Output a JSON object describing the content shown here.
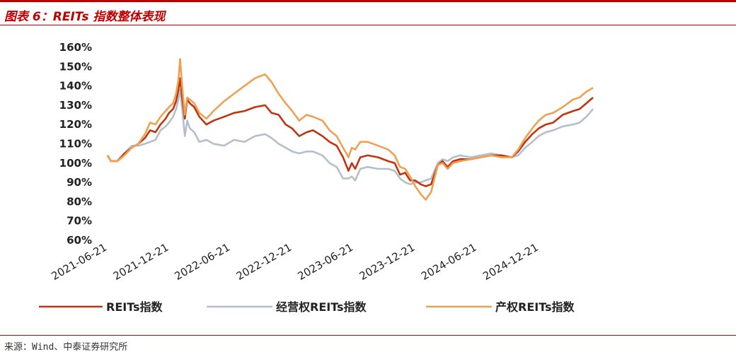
{
  "header": {
    "title": "图表 6：REITs 指数整体表现"
  },
  "footer": {
    "source": "来源：Wind、中泰证券研究所"
  },
  "colors": {
    "accent": "#c00000"
  },
  "chart_data": {
    "type": "line",
    "title": "图表 6：REITs 指数整体表现",
    "y_unit": "%",
    "ylim": [
      60,
      160
    ],
    "y_ticks": [
      "60%",
      "70%",
      "80%",
      "90%",
      "100%",
      "110%",
      "120%",
      "130%",
      "140%",
      "150%",
      "160%"
    ],
    "x_ticks": [
      "2021-06-21",
      "2021-12-21",
      "2022-06-21",
      "2022-12-21",
      "2023-06-21",
      "2023-12-21",
      "2024-06-21",
      "2024-12-21"
    ],
    "xlim": [
      "2021-06-21",
      "2025-05-30"
    ],
    "grid": false,
    "legend_position": "bottom",
    "series": [
      {
        "name": "REITs指数",
        "color": "#c0340f",
        "points": [
          [
            "2021-06-21",
            104
          ],
          [
            "2021-07-01",
            101
          ],
          [
            "2021-07-20",
            101
          ],
          [
            "2021-08-10",
            105
          ],
          [
            "2021-09-01",
            108
          ],
          [
            "2021-09-20",
            110
          ],
          [
            "2021-10-10",
            113
          ],
          [
            "2021-10-25",
            117
          ],
          [
            "2021-11-10",
            116
          ],
          [
            "2021-11-25",
            120
          ],
          [
            "2021-12-10",
            123
          ],
          [
            "2021-12-20",
            126
          ],
          [
            "2022-01-01",
            128
          ],
          [
            "2022-01-10",
            132
          ],
          [
            "2022-01-17",
            138
          ],
          [
            "2022-01-22",
            144
          ],
          [
            "2022-01-28",
            134
          ],
          [
            "2022-02-05",
            123
          ],
          [
            "2022-02-12",
            133
          ],
          [
            "2022-02-20",
            131
          ],
          [
            "2022-03-05",
            129
          ],
          [
            "2022-03-20",
            124
          ],
          [
            "2022-04-10",
            120
          ],
          [
            "2022-05-01",
            122
          ],
          [
            "2022-06-01",
            124
          ],
          [
            "2022-07-01",
            126
          ],
          [
            "2022-08-01",
            127
          ],
          [
            "2022-09-01",
            129
          ],
          [
            "2022-10-01",
            130
          ],
          [
            "2022-10-20",
            126
          ],
          [
            "2022-11-10",
            125
          ],
          [
            "2022-12-01",
            120
          ],
          [
            "2022-12-20",
            118
          ],
          [
            "2023-01-10",
            114
          ],
          [
            "2023-02-01",
            116
          ],
          [
            "2023-02-20",
            117
          ],
          [
            "2023-03-20",
            114
          ],
          [
            "2023-04-10",
            111
          ],
          [
            "2023-05-01",
            109
          ],
          [
            "2023-05-20",
            103
          ],
          [
            "2023-06-05",
            96
          ],
          [
            "2023-06-15",
            100
          ],
          [
            "2023-06-25",
            97
          ],
          [
            "2023-07-10",
            103
          ],
          [
            "2023-08-01",
            104
          ],
          [
            "2023-09-01",
            103
          ],
          [
            "2023-10-01",
            101
          ],
          [
            "2023-10-20",
            100
          ],
          [
            "2023-11-05",
            94
          ],
          [
            "2023-11-20",
            95
          ],
          [
            "2023-12-05",
            91
          ],
          [
            "2023-12-20",
            91
          ],
          [
            "2024-01-05",
            89
          ],
          [
            "2024-01-20",
            88
          ],
          [
            "2024-02-05",
            89
          ],
          [
            "2024-02-15",
            94
          ],
          [
            "2024-02-25",
            99
          ],
          [
            "2024-03-10",
            101
          ],
          [
            "2024-03-25",
            98
          ],
          [
            "2024-04-10",
            101
          ],
          [
            "2024-05-01",
            102
          ],
          [
            "2024-06-01",
            102
          ],
          [
            "2024-07-01",
            103
          ],
          [
            "2024-08-01",
            104
          ],
          [
            "2024-09-01",
            104
          ],
          [
            "2024-10-01",
            103
          ],
          [
            "2024-10-20",
            106
          ],
          [
            "2024-11-10",
            111
          ],
          [
            "2024-12-01",
            115
          ],
          [
            "2024-12-20",
            118
          ],
          [
            "2025-01-10",
            120
          ],
          [
            "2025-02-01",
            121
          ],
          [
            "2025-03-01",
            125
          ],
          [
            "2025-04-01",
            127
          ],
          [
            "2025-04-20",
            128
          ],
          [
            "2025-05-10",
            131
          ],
          [
            "2025-05-30",
            134
          ]
        ]
      },
      {
        "name": "经营权REITs指数",
        "color": "#b4bfc9",
        "points": [
          [
            "2021-06-21",
            104
          ],
          [
            "2021-07-01",
            101
          ],
          [
            "2021-07-20",
            101
          ],
          [
            "2021-08-10",
            105
          ],
          [
            "2021-09-01",
            109
          ],
          [
            "2021-09-20",
            109
          ],
          [
            "2021-10-10",
            110
          ],
          [
            "2021-10-25",
            111
          ],
          [
            "2021-11-10",
            112
          ],
          [
            "2021-11-25",
            117
          ],
          [
            "2021-12-10",
            119
          ],
          [
            "2021-12-20",
            121
          ],
          [
            "2022-01-01",
            124
          ],
          [
            "2022-01-10",
            128
          ],
          [
            "2022-01-17",
            133
          ],
          [
            "2022-01-22",
            138
          ],
          [
            "2022-01-28",
            128
          ],
          [
            "2022-02-05",
            114
          ],
          [
            "2022-02-12",
            122
          ],
          [
            "2022-02-20",
            118
          ],
          [
            "2022-03-05",
            116
          ],
          [
            "2022-03-20",
            111
          ],
          [
            "2022-04-10",
            112
          ],
          [
            "2022-05-01",
            110
          ],
          [
            "2022-06-01",
            109
          ],
          [
            "2022-07-01",
            112
          ],
          [
            "2022-08-01",
            111
          ],
          [
            "2022-09-01",
            114
          ],
          [
            "2022-10-01",
            115
          ],
          [
            "2022-10-20",
            113
          ],
          [
            "2022-11-10",
            110
          ],
          [
            "2022-12-01",
            108
          ],
          [
            "2022-12-20",
            106
          ],
          [
            "2023-01-10",
            105
          ],
          [
            "2023-02-01",
            106
          ],
          [
            "2023-02-20",
            106
          ],
          [
            "2023-03-20",
            104
          ],
          [
            "2023-04-10",
            100
          ],
          [
            "2023-05-01",
            98
          ],
          [
            "2023-05-20",
            92
          ],
          [
            "2023-06-05",
            92
          ],
          [
            "2023-06-15",
            93
          ],
          [
            "2023-06-25",
            91
          ],
          [
            "2023-07-10",
            97
          ],
          [
            "2023-08-01",
            98
          ],
          [
            "2023-09-01",
            97
          ],
          [
            "2023-10-01",
            97
          ],
          [
            "2023-10-20",
            96
          ],
          [
            "2023-11-05",
            92
          ],
          [
            "2023-11-20",
            90
          ],
          [
            "2023-12-05",
            89
          ],
          [
            "2023-12-20",
            90
          ],
          [
            "2024-01-05",
            90
          ],
          [
            "2024-01-20",
            91
          ],
          [
            "2024-02-05",
            92
          ],
          [
            "2024-02-15",
            96
          ],
          [
            "2024-02-25",
            100
          ],
          [
            "2024-03-10",
            102
          ],
          [
            "2024-03-25",
            101
          ],
          [
            "2024-04-10",
            103
          ],
          [
            "2024-05-01",
            104
          ],
          [
            "2024-06-01",
            103
          ],
          [
            "2024-07-01",
            104
          ],
          [
            "2024-08-01",
            105
          ],
          [
            "2024-09-01",
            104
          ],
          [
            "2024-10-01",
            103
          ],
          [
            "2024-10-20",
            104
          ],
          [
            "2024-11-10",
            108
          ],
          [
            "2024-12-01",
            111
          ],
          [
            "2024-12-20",
            114
          ],
          [
            "2025-01-10",
            116
          ],
          [
            "2025-02-01",
            117
          ],
          [
            "2025-03-01",
            119
          ],
          [
            "2025-04-01",
            120
          ],
          [
            "2025-04-20",
            121
          ],
          [
            "2025-05-10",
            124
          ],
          [
            "2025-05-30",
            128
          ]
        ]
      },
      {
        "name": "产权REITs指数",
        "color": "#f0a050",
        "points": [
          [
            "2021-06-21",
            104
          ],
          [
            "2021-07-01",
            101
          ],
          [
            "2021-07-20",
            101
          ],
          [
            "2021-08-10",
            104
          ],
          [
            "2021-09-01",
            108
          ],
          [
            "2021-09-20",
            110
          ],
          [
            "2021-10-10",
            115
          ],
          [
            "2021-10-25",
            121
          ],
          [
            "2021-11-10",
            120
          ],
          [
            "2021-11-25",
            124
          ],
          [
            "2021-12-10",
            127
          ],
          [
            "2021-12-20",
            129
          ],
          [
            "2022-01-01",
            131
          ],
          [
            "2022-01-10",
            136
          ],
          [
            "2022-01-17",
            143
          ],
          [
            "2022-01-22",
            154
          ],
          [
            "2022-01-28",
            140
          ],
          [
            "2022-02-05",
            125
          ],
          [
            "2022-02-12",
            134
          ],
          [
            "2022-02-20",
            133
          ],
          [
            "2022-03-05",
            131
          ],
          [
            "2022-03-20",
            126
          ],
          [
            "2022-04-10",
            123
          ],
          [
            "2022-05-01",
            127
          ],
          [
            "2022-06-01",
            132
          ],
          [
            "2022-07-01",
            136
          ],
          [
            "2022-08-01",
            140
          ],
          [
            "2022-09-01",
            144
          ],
          [
            "2022-10-01",
            146
          ],
          [
            "2022-10-20",
            142
          ],
          [
            "2022-11-10",
            136
          ],
          [
            "2022-12-01",
            131
          ],
          [
            "2022-12-20",
            127
          ],
          [
            "2023-01-10",
            122
          ],
          [
            "2023-02-01",
            125
          ],
          [
            "2023-02-20",
            124
          ],
          [
            "2023-03-20",
            122
          ],
          [
            "2023-04-10",
            117
          ],
          [
            "2023-05-01",
            114
          ],
          [
            "2023-05-20",
            108
          ],
          [
            "2023-06-05",
            103
          ],
          [
            "2023-06-15",
            108
          ],
          [
            "2023-06-25",
            107
          ],
          [
            "2023-07-10",
            111
          ],
          [
            "2023-08-01",
            111
          ],
          [
            "2023-09-01",
            109
          ],
          [
            "2023-10-01",
            107
          ],
          [
            "2023-10-20",
            104
          ],
          [
            "2023-11-05",
            98
          ],
          [
            "2023-11-20",
            97
          ],
          [
            "2023-12-05",
            93
          ],
          [
            "2023-12-20",
            88
          ],
          [
            "2024-01-05",
            84
          ],
          [
            "2024-01-20",
            81
          ],
          [
            "2024-02-05",
            85
          ],
          [
            "2024-02-15",
            92
          ],
          [
            "2024-02-25",
            99
          ],
          [
            "2024-03-10",
            100
          ],
          [
            "2024-03-25",
            97
          ],
          [
            "2024-04-10",
            100
          ],
          [
            "2024-05-01",
            101
          ],
          [
            "2024-06-01",
            102
          ],
          [
            "2024-07-01",
            103
          ],
          [
            "2024-08-01",
            104
          ],
          [
            "2024-09-01",
            103
          ],
          [
            "2024-10-01",
            103
          ],
          [
            "2024-10-20",
            107
          ],
          [
            "2024-11-10",
            113
          ],
          [
            "2024-12-01",
            118
          ],
          [
            "2024-12-20",
            122
          ],
          [
            "2025-01-10",
            125
          ],
          [
            "2025-02-01",
            126
          ],
          [
            "2025-03-01",
            129
          ],
          [
            "2025-04-01",
            133
          ],
          [
            "2025-04-20",
            134
          ],
          [
            "2025-05-10",
            137
          ],
          [
            "2025-05-30",
            139
          ]
        ]
      }
    ]
  }
}
